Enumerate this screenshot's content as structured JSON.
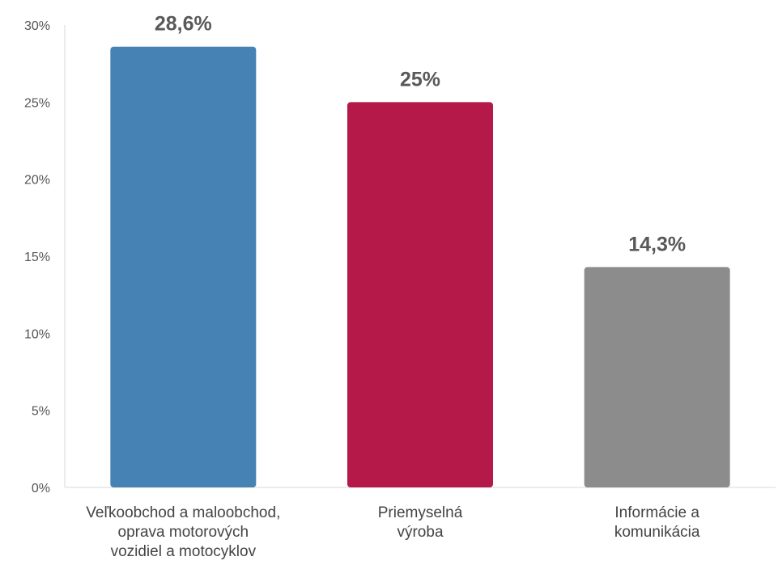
{
  "chart_data": {
    "type": "bar",
    "title": "",
    "xlabel": "",
    "ylabel": "",
    "ylim": [
      0,
      30
    ],
    "yticks": [
      0,
      5,
      10,
      15,
      20,
      25,
      30
    ],
    "ytick_labels": [
      "0%",
      "5%",
      "10%",
      "15%",
      "20%",
      "25%",
      "30%"
    ],
    "grid": false,
    "categories": [
      [
        "Veľkoobchod a maloobchod,",
        "oprava motorových",
        "vozidiel a motocyklov"
      ],
      [
        "Priemyselná",
        "výroba"
      ],
      [
        "Informácie a",
        "komunikácia"
      ]
    ],
    "values": [
      28.6,
      25,
      14.3
    ],
    "data_labels": [
      "28,6%",
      "25%",
      "14,3%"
    ],
    "colors": [
      "#4682b4",
      "#b5194a",
      "#8c8c8c"
    ]
  }
}
